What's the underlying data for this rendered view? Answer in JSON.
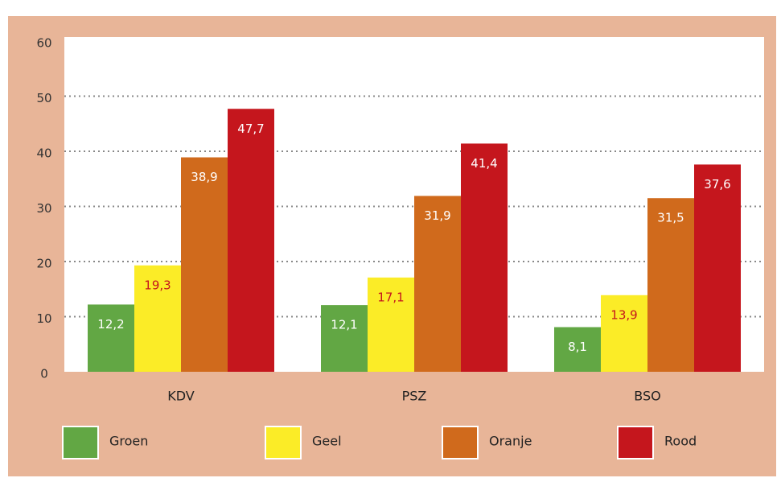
{
  "chart_data": {
    "type": "bar",
    "categories": [
      "KDV",
      "PSZ",
      "BSO"
    ],
    "series": [
      {
        "name": "Groen",
        "color": "#62a744",
        "values": [
          12.2,
          12.1,
          8.1
        ],
        "value_labels": [
          "12,2",
          "12,1",
          "8,1"
        ]
      },
      {
        "name": "Geel",
        "color": "#fbec27",
        "values": [
          19.3,
          17.1,
          13.9
        ],
        "value_labels": [
          "19,3",
          "17,1",
          "13,9"
        ]
      },
      {
        "name": "Oranje",
        "color": "#d06a1c",
        "values": [
          38.9,
          31.9,
          31.5
        ],
        "value_labels": [
          "38,9",
          "31,9",
          "31,5"
        ]
      },
      {
        "name": "Rood",
        "color": "#c5161d",
        "values": [
          47.7,
          41.4,
          37.6
        ],
        "value_labels": [
          "47,7",
          "41,4",
          "37,6"
        ]
      }
    ],
    "ylim": [
      0,
      60
    ],
    "yticks": [
      0,
      10,
      20,
      30,
      40,
      50,
      60
    ],
    "grid": true
  }
}
